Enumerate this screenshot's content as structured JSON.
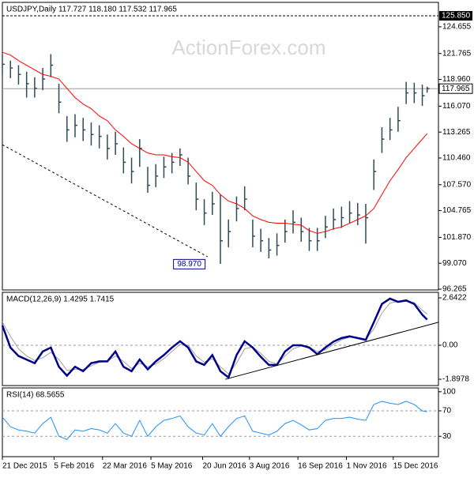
{
  "chart_data": [
    {
      "type": "ohlc",
      "title": "USDJPY,Daily  117.727 118.180 117.532 117.965",
      "watermark": "ActionForex.com",
      "color": "#2e4a55",
      "x": [
        0,
        5,
        10,
        15,
        20,
        25,
        30,
        35,
        40,
        45,
        50,
        55,
        60,
        65,
        70,
        75,
        80,
        85,
        90,
        95,
        100,
        105,
        110,
        115,
        120,
        125,
        130,
        135,
        140,
        145,
        150,
        155,
        160,
        165,
        170,
        175,
        180,
        185,
        190,
        195,
        200,
        205,
        210,
        215,
        220,
        225,
        230,
        235,
        240,
        245,
        250,
        255,
        260,
        263
      ],
      "high": [
        121.6,
        121.0,
        120.5,
        119.8,
        119.2,
        120.2,
        121.7,
        118.5,
        115.0,
        115.2,
        114.8,
        114.3,
        114.0,
        113.0,
        113.3,
        111.6,
        110.5,
        112.5,
        109.5,
        109.8,
        110.6,
        111.0,
        111.5,
        110.5,
        107.8,
        106.0,
        106.8,
        106.5,
        103.8,
        106.3,
        107.4,
        103.8,
        102.8,
        101.8,
        102.3,
        103.8,
        104.8,
        104.0,
        102.9,
        102.9,
        104.2,
        105.0,
        105.2,
        105.8,
        105.6,
        105.5,
        110.3,
        113.8,
        114.8,
        116.0,
        118.7,
        118.6,
        118.4,
        118.18
      ],
      "low": [
        119.5,
        119.1,
        118.4,
        117.0,
        117.0,
        117.8,
        119.2,
        115.3,
        112.2,
        112.7,
        112.3,
        111.8,
        111.5,
        110.3,
        110.8,
        108.8,
        107.7,
        109.5,
        106.7,
        107.3,
        108.3,
        108.8,
        109.6,
        107.6,
        104.8,
        103.2,
        104.3,
        99.0,
        100.8,
        103.6,
        104.8,
        100.8,
        100.3,
        99.6,
        99.9,
        101.3,
        102.3,
        101.4,
        100.4,
        100.4,
        101.8,
        102.7,
        102.9,
        103.4,
        103.2,
        101.2,
        107.0,
        111.0,
        112.4,
        113.3,
        116.3,
        116.4,
        116.1,
        117.532
      ],
      "close": [
        120.6,
        120.2,
        119.5,
        118.5,
        118.0,
        119.0,
        120.5,
        116.5,
        113.5,
        114.0,
        113.5,
        113.0,
        112.8,
        111.5,
        112.0,
        110.0,
        109.0,
        111.5,
        107.5,
        108.5,
        109.5,
        110.0,
        110.8,
        108.5,
        106.0,
        104.5,
        105.5,
        101.5,
        102.5,
        105.0,
        106.0,
        102.0,
        101.5,
        100.5,
        101.0,
        102.5,
        103.5,
        102.5,
        101.5,
        101.5,
        103.0,
        103.8,
        104.0,
        104.5,
        104.3,
        104.0,
        109.0,
        112.5,
        113.5,
        114.5,
        117.5,
        117.5,
        117.2,
        117.965
      ],
      "ma": {
        "color": "#ff0000",
        "values": [
          121.9,
          121.6,
          121.0,
          120.5,
          120.0,
          119.5,
          119.3,
          119.0,
          118.0,
          117.0,
          116.3,
          115.8,
          115.0,
          114.5,
          113.5,
          112.8,
          112.0,
          111.5,
          111.0,
          110.8,
          110.8,
          110.6,
          110.5,
          110.0,
          109.0,
          108.0,
          107.5,
          106.5,
          105.8,
          105.5,
          105.0,
          104.2,
          103.8,
          103.5,
          103.4,
          103.4,
          103.3,
          103.2,
          102.6,
          102.3,
          102.5,
          102.8,
          103.0,
          103.4,
          103.8,
          104.2,
          105.0,
          106.5,
          108.0,
          109.2,
          110.5,
          111.5,
          112.5,
          113.1
        ]
      },
      "xlim": [
        0,
        270
      ],
      "ylim": [
        96.18,
        127.3
      ],
      "yticks": [
        {
          "value": 124.655,
          "label": "124.655"
        },
        {
          "value": 121.765,
          "label": "121.765"
        },
        {
          "value": 118.96,
          "label": "118.960"
        },
        {
          "value": 116.07,
          "label": "116.070"
        },
        {
          "value": 113.265,
          "label": "113.265"
        },
        {
          "value": 110.46,
          "label": "110.460"
        },
        {
          "value": 107.57,
          "label": "107.570"
        },
        {
          "value": 104.765,
          "label": "104.765"
        },
        {
          "value": 101.87,
          "label": "101.870"
        },
        {
          "value": 99.07,
          "label": "99.070"
        },
        {
          "value": 96.265,
          "label": "96.265"
        }
      ],
      "level": {
        "value": 125.85,
        "label": "125.850"
      },
      "last": {
        "value": 117.965,
        "label": "117.965"
      },
      "low_mark": {
        "x": 127,
        "value": 98.97,
        "label": "98.970"
      },
      "trendline": {
        "x": [
          0,
          127
        ],
        "values": [
          111.9,
          99.78
        ]
      },
      "xticks": [
        {
          "value": 0,
          "label": "21 Dec 2015"
        },
        {
          "value": 32,
          "label": "5 Feb 2016"
        },
        {
          "value": 62,
          "label": "22 Mar 2016"
        },
        {
          "value": 92,
          "label": "5 May 2016"
        },
        {
          "value": 124,
          "label": "20 Jun 2016"
        },
        {
          "value": 153,
          "label": "3 Aug 2016"
        },
        {
          "value": 183,
          "label": "16 Sep 2016"
        },
        {
          "value": 213,
          "label": "1 Nov 2016"
        },
        {
          "value": 242,
          "label": "15 Dec 2016"
        }
      ]
    },
    {
      "type": "line",
      "title": "MACD(12,26,9) 1.4295 1.7415",
      "ylim": [
        -2.25,
        2.95
      ],
      "yticks": [
        2.6422,
        {
          "value": 0,
          "label": "0.00"
        },
        -1.8978
      ],
      "zero_line": 0,
      "series": [
        {
          "color": "#00008b",
          "width": 2.5,
          "values": [
            1.1,
            -0.13,
            -0.6,
            -0.8,
            -1.0,
            -0.35,
            -0.13,
            -1.2,
            -1.7,
            -1.2,
            -1.45,
            -1.0,
            -0.9,
            -0.9,
            -0.35,
            -1.2,
            -1.45,
            -0.8,
            -1.35,
            -0.9,
            -0.55,
            -0.13,
            0.22,
            -0.13,
            -0.9,
            -1.1,
            -0.55,
            -1.45,
            -1.8,
            -0.55,
            0.22,
            -0.13,
            -0.65,
            -1.1,
            -1.1,
            -0.35,
            0.0,
            0.0,
            -0.13,
            -0.5,
            -0.13,
            0.2,
            0.4,
            0.5,
            0.4,
            0.3,
            1.28,
            2.3,
            2.6,
            2.42,
            2.5,
            2.3,
            1.7,
            1.4295
          ]
        },
        {
          "color": "#a0a0a0",
          "width": 1,
          "values": [
            1.3,
            0.5,
            -0.2,
            -0.6,
            -0.85,
            -0.7,
            -0.4,
            -0.8,
            -1.4,
            -1.35,
            -1.35,
            -1.15,
            -0.95,
            -0.9,
            -0.6,
            -0.9,
            -1.3,
            -1.0,
            -1.2,
            -1.05,
            -0.75,
            -0.35,
            0.05,
            0.0,
            -0.6,
            -0.95,
            -0.75,
            -1.2,
            -1.6,
            -1.0,
            -0.2,
            -0.1,
            -0.45,
            -0.9,
            -1.05,
            -0.6,
            -0.2,
            -0.05,
            -0.1,
            -0.35,
            -0.25,
            0.05,
            0.3,
            0.45,
            0.42,
            0.33,
            0.9,
            1.8,
            2.35,
            2.45,
            2.45,
            2.38,
            1.95,
            1.7415
          ]
        }
      ],
      "trendline": {
        "x": [
          138,
          270
        ],
        "values": [
          -1.9,
          1.28
        ]
      }
    },
    {
      "type": "line",
      "title": "RSI(14) 68.5655",
      "ylim": [
        -2,
        106
      ],
      "yticks": [
        100,
        70,
        30
      ],
      "levels": [
        70,
        30
      ],
      "series": [
        {
          "color": "#1e90ff",
          "width": 1,
          "values": [
            60,
            45,
            40,
            38,
            35,
            50,
            60,
            30,
            25,
            40,
            38,
            42,
            40,
            35,
            50,
            35,
            30,
            55,
            30,
            45,
            55,
            58,
            62,
            45,
            35,
            32,
            50,
            30,
            45,
            58,
            62,
            38,
            35,
            32,
            38,
            50,
            55,
            48,
            40,
            42,
            55,
            58,
            58,
            60,
            57,
            55,
            80,
            85,
            82,
            80,
            85,
            80,
            70,
            68.5655
          ]
        }
      ]
    }
  ]
}
